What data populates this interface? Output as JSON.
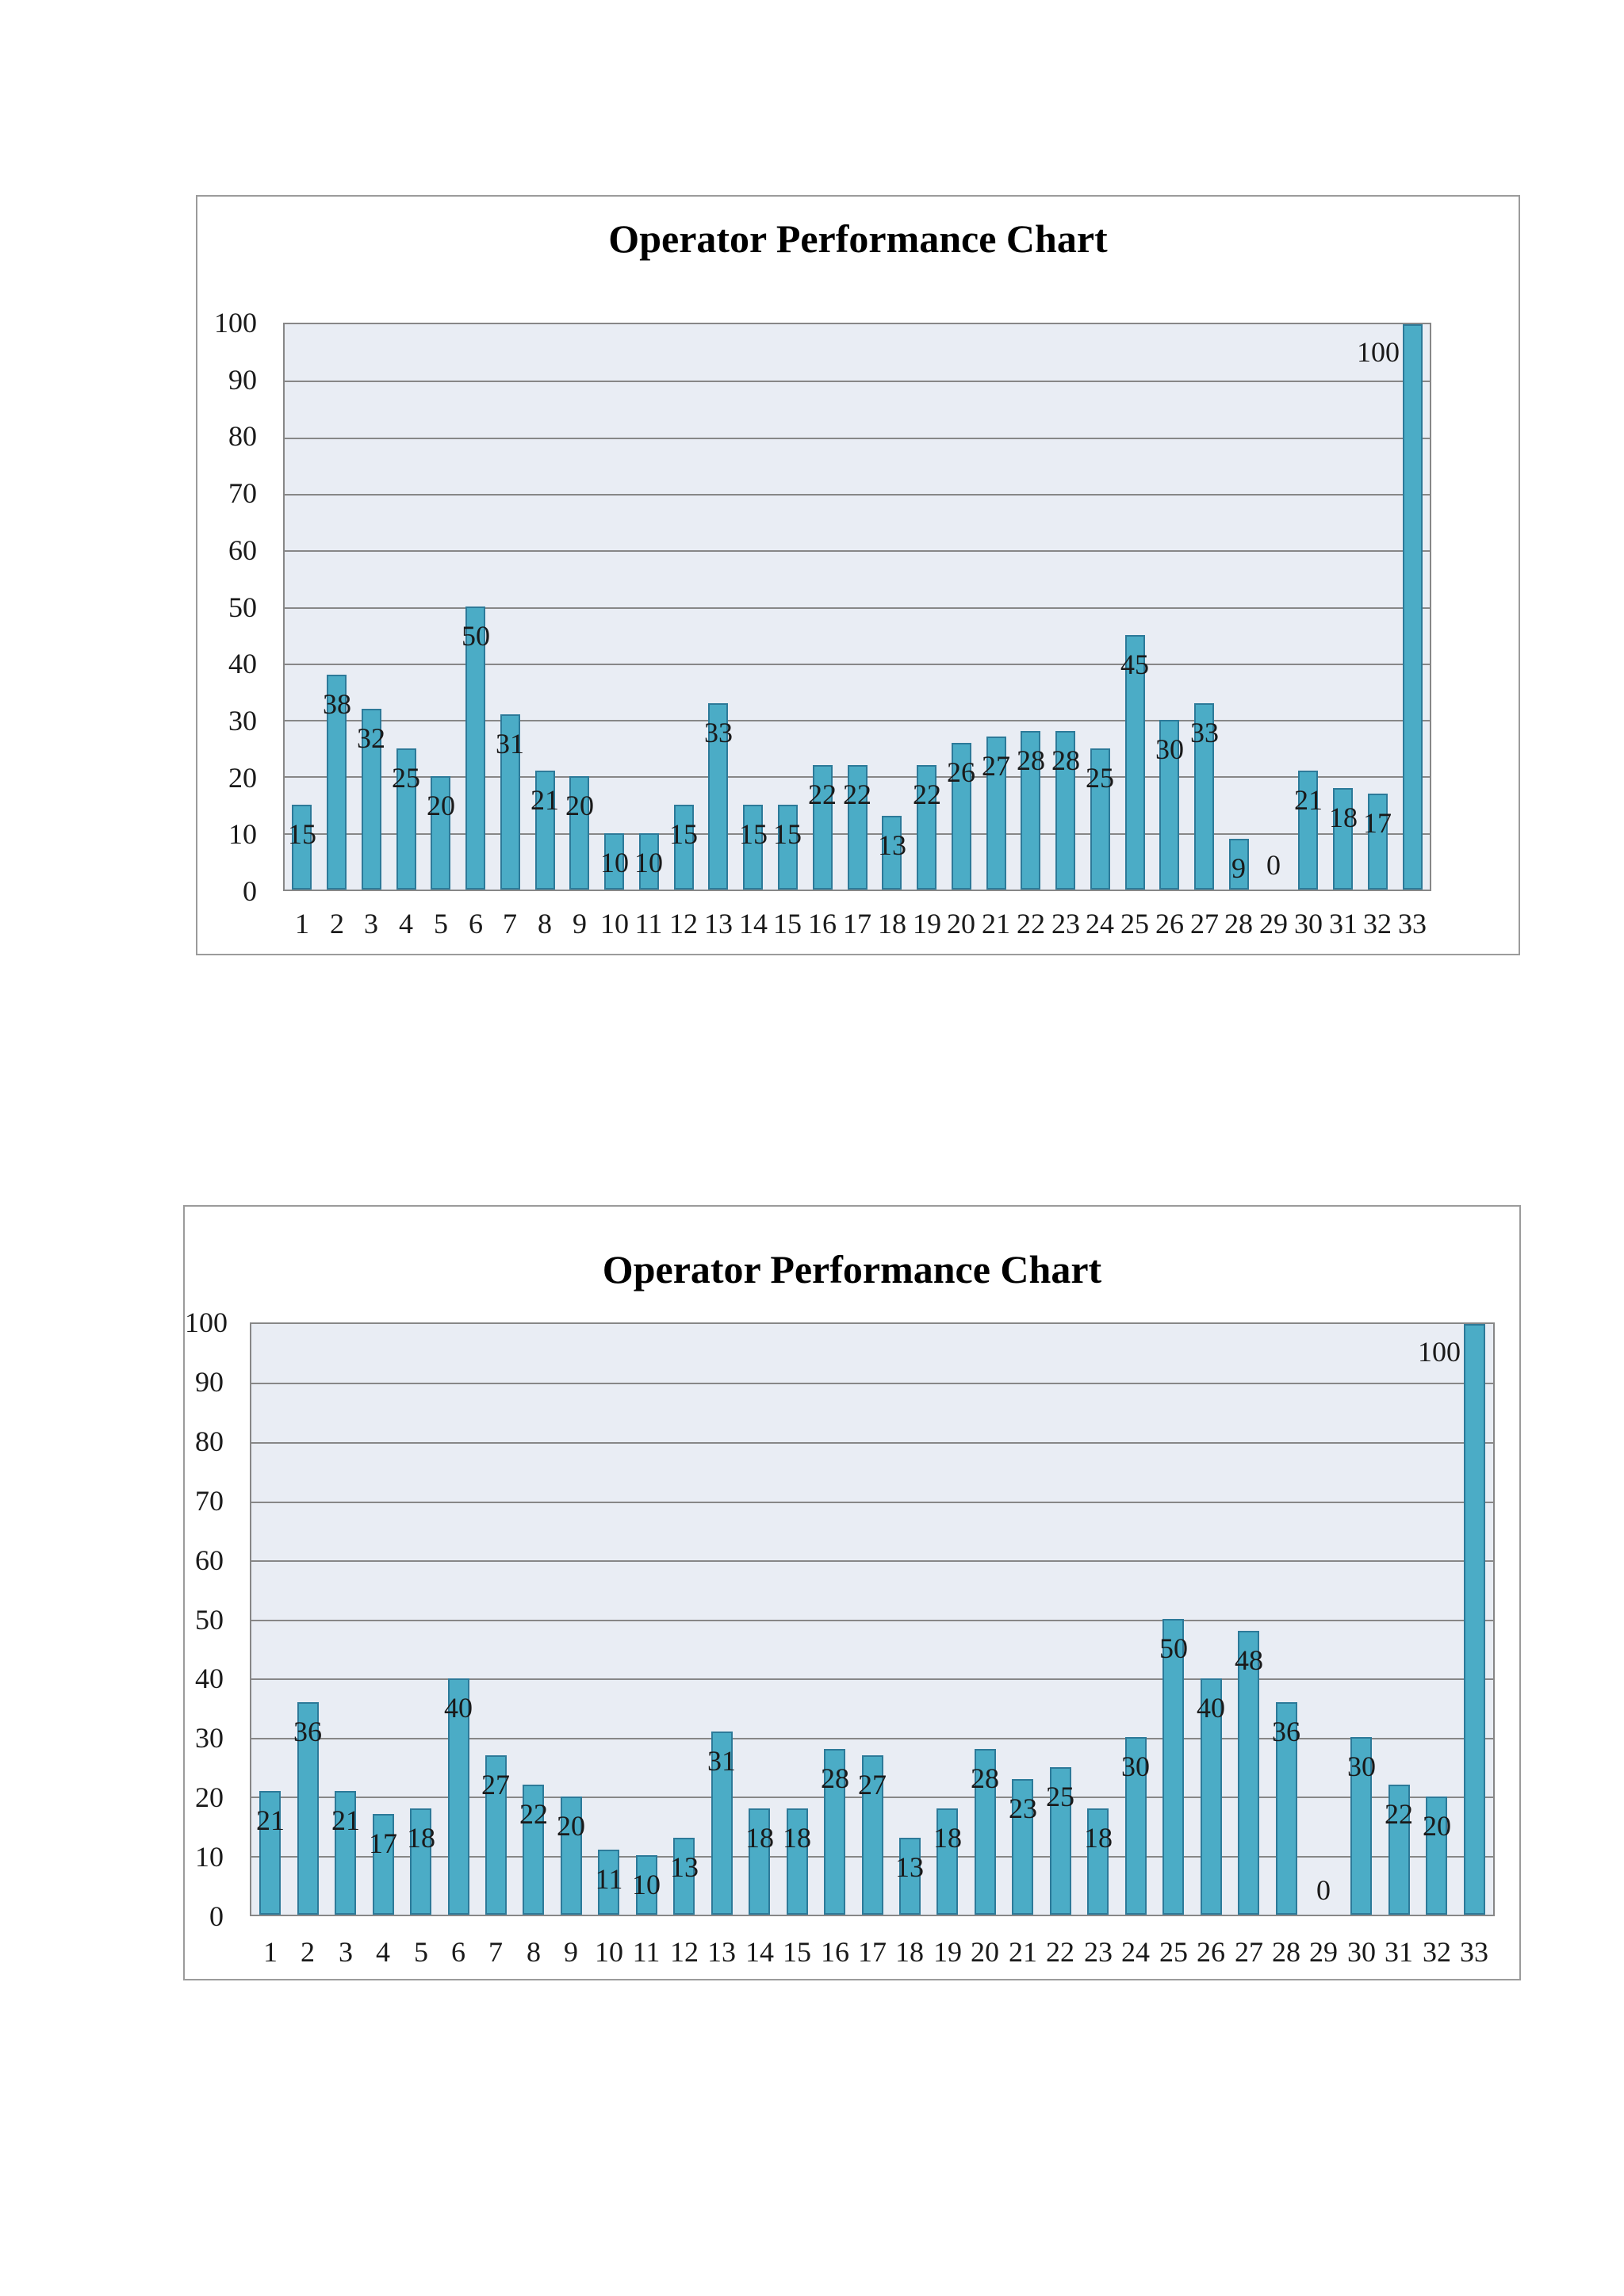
{
  "page": {
    "background_color": "#ffffff"
  },
  "styles": {
    "bar_fill_color": "#4BACC6",
    "bar_border_color": "#2d7a99",
    "plot_background_color": "#E9EDF4",
    "gridline_color": "#878787",
    "frame_border_color": "#9b9b9b",
    "label_color": "#1a1a1a",
    "title_color": "#000000"
  },
  "chart_data": [
    {
      "type": "bar",
      "title": "Operator Performance Chart",
      "categories": [
        "1",
        "2",
        "3",
        "4",
        "5",
        "6",
        "7",
        "8",
        "9",
        "10",
        "11",
        "12",
        "13",
        "14",
        "15",
        "16",
        "17",
        "18",
        "19",
        "20",
        "21",
        "22",
        "23",
        "24",
        "25",
        "26",
        "27",
        "28",
        "29",
        "30",
        "31",
        "32",
        "33"
      ],
      "values": [
        15,
        38,
        32,
        25,
        20,
        50,
        31,
        21,
        20,
        10,
        10,
        15,
        33,
        15,
        15,
        22,
        22,
        13,
        22,
        26,
        27,
        28,
        28,
        25,
        45,
        30,
        33,
        9,
        0,
        21,
        18,
        17,
        100
      ],
      "xlabel": "",
      "ylabel": "",
      "ylim": [
        0,
        100
      ],
      "yticks": [
        "0",
        "10",
        "20",
        "30",
        "40",
        "50",
        "60",
        "70",
        "80",
        "90",
        "100"
      ],
      "grid": true,
      "legend": "none",
      "data_labels": "inside-end"
    },
    {
      "type": "bar",
      "title": "Operator Performance Chart",
      "categories": [
        "1",
        "2",
        "3",
        "4",
        "5",
        "6",
        "7",
        "8",
        "9",
        "10",
        "11",
        "12",
        "13",
        "14",
        "15",
        "16",
        "17",
        "18",
        "19",
        "20",
        "21",
        "22",
        "23",
        "24",
        "25",
        "26",
        "27",
        "28",
        "29",
        "30",
        "31",
        "32",
        "33"
      ],
      "values": [
        21,
        36,
        21,
        17,
        18,
        40,
        27,
        22,
        20,
        11,
        10,
        13,
        31,
        18,
        18,
        28,
        27,
        13,
        18,
        28,
        23,
        25,
        18,
        30,
        50,
        40,
        48,
        36,
        0,
        30,
        22,
        20,
        100
      ],
      "xlabel": "",
      "ylabel": "",
      "ylim": [
        0,
        100
      ],
      "yticks": [
        "0",
        "10",
        "20",
        "30",
        "40",
        "50",
        "60",
        "70",
        "80",
        "90",
        "100"
      ],
      "grid": true,
      "legend": "none",
      "data_labels": "inside-end"
    }
  ]
}
